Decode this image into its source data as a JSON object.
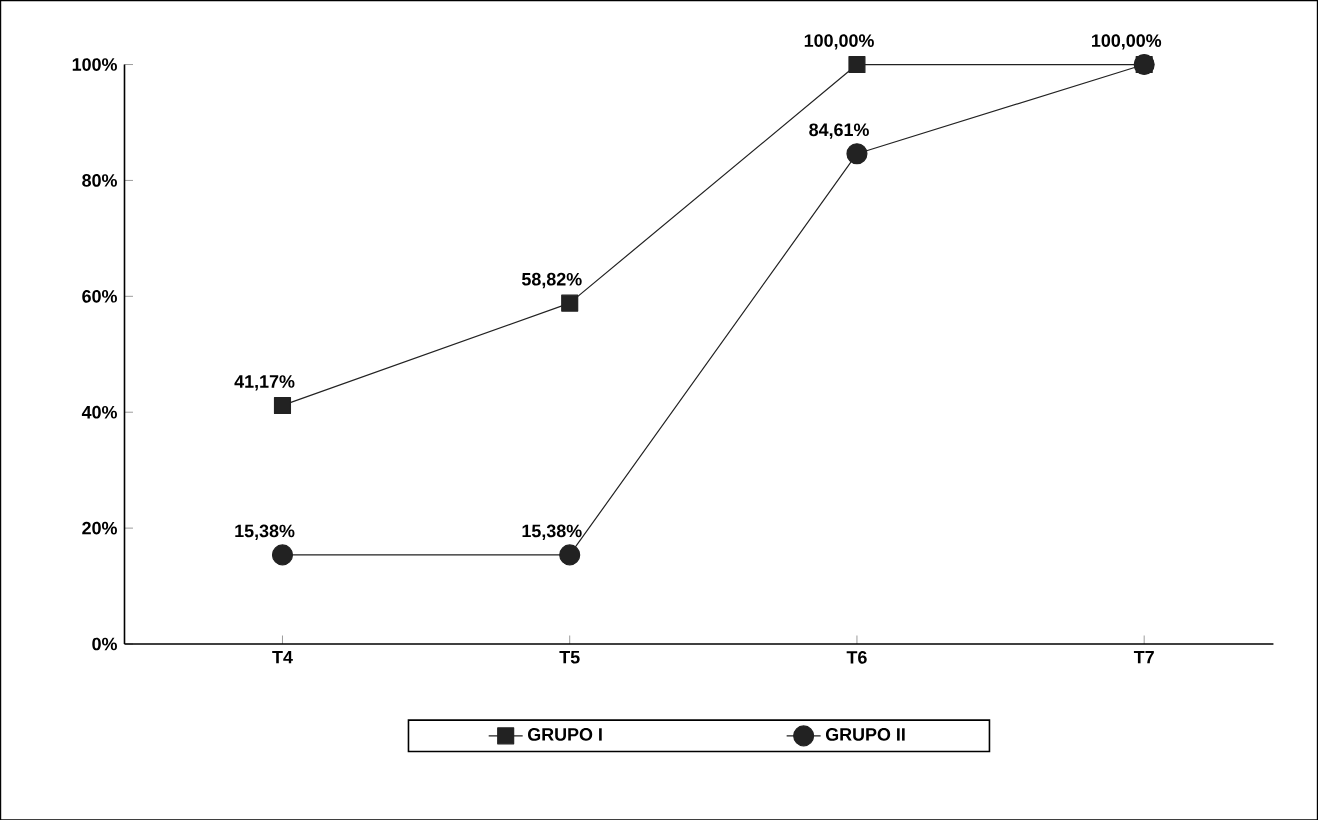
{
  "chart_data": {
    "type": "line",
    "categories": [
      "T4",
      "T5",
      "T6",
      "T7"
    ],
    "series": [
      {
        "name": "GRUPO I",
        "color": "#222222",
        "marker": "square",
        "values": [
          41.17,
          58.82,
          100,
          100
        ],
        "value_labels": [
          "41,17%",
          "58,82%",
          "100,00%",
          "100,00%"
        ]
      },
      {
        "name": "GRUPO II",
        "color": "#222222",
        "marker": "circle",
        "values": [
          15.38,
          15.38,
          84.61,
          100
        ],
        "value_labels": [
          "15,38%",
          "15,38%",
          "84,61%",
          null
        ]
      }
    ],
    "ylim": [
      0,
      100
    ],
    "yticks": [
      {
        "value": 0,
        "label": "0%"
      },
      {
        "value": 20,
        "label": "20%"
      },
      {
        "value": 40,
        "label": "40%"
      },
      {
        "value": 60,
        "label": "60%"
      },
      {
        "value": 80,
        "label": "80%"
      },
      {
        "value": 100,
        "label": "100%"
      }
    ],
    "grid": false,
    "legend": "bottom",
    "line_style": "solid"
  }
}
